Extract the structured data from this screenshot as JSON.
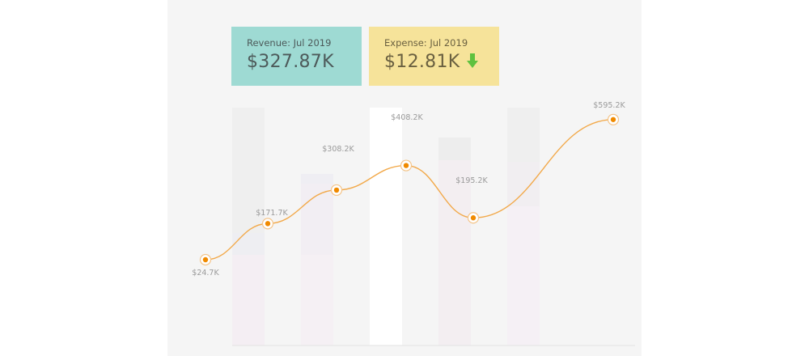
{
  "cards": {
    "revenue": {
      "label": "Revenue: Jul 2019",
      "value": "$327.87K"
    },
    "expense": {
      "label": "Expense: Jul 2019",
      "value": "$12.81K",
      "trend_icon": "arrow-down-icon",
      "trend_color": "#5fc13f"
    }
  },
  "colors": {
    "line": "#f2a94a",
    "point": "#f08a00",
    "card_revenue": "#9edad3",
    "card_expense": "#f6e39a",
    "panel": "#f5f5f5"
  },
  "chart_data": {
    "type": "line",
    "series": [
      {
        "values": [
          24.7,
          171.7,
          308.2,
          408.2,
          195.2,
          595.2
        ],
        "labels": [
          "$24.7K",
          "$171.7K",
          "$308.2K",
          "$408.2K",
          "$195.2K",
          "$595.2K"
        ]
      }
    ],
    "highlighted_bar": 2,
    "grid": false
  }
}
